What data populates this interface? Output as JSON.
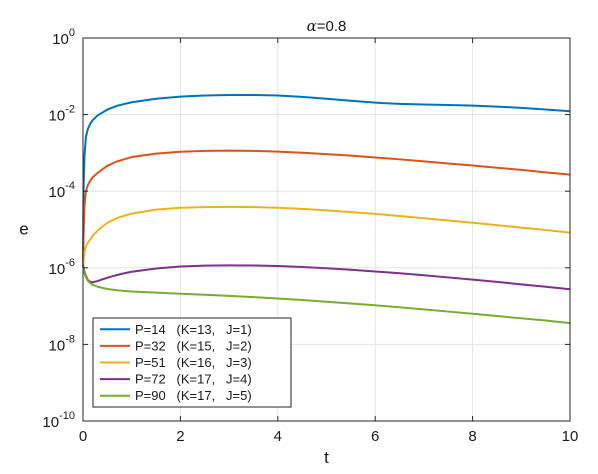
{
  "chart_data": {
    "type": "line",
    "title_prefix": "α",
    "title_suffix": "=0.8",
    "xlabel": "t",
    "ylabel": "e",
    "xlim": [
      0,
      10
    ],
    "ylim": [
      1e-10,
      1
    ],
    "yscale": "log",
    "grid": true,
    "legend_position": "bottom-left",
    "x_ticks": [
      0,
      2,
      4,
      6,
      8,
      10
    ],
    "x_tick_labels": [
      "0",
      "2",
      "4",
      "6",
      "8",
      "10"
    ],
    "y_ticks": [
      -10,
      -8,
      -6,
      -4,
      -2,
      0
    ],
    "y_tick_labels": [
      {
        "base": "10",
        "exp": "-10"
      },
      {
        "base": "10",
        "exp": "-8"
      },
      {
        "base": "10",
        "exp": "-6"
      },
      {
        "base": "10",
        "exp": "-4"
      },
      {
        "base": "10",
        "exp": "-2"
      },
      {
        "base": "10",
        "exp": "0"
      }
    ],
    "series": [
      {
        "name": "P=14   (K=13,   J=1)",
        "color": "#0072BD",
        "x": [
          0.0,
          0.01,
          0.03,
          0.06,
          0.1,
          0.15,
          0.2,
          0.3,
          0.5,
          0.7,
          1.0,
          1.5,
          2.0,
          2.5,
          3.0,
          3.5,
          4.0,
          4.5,
          5.0,
          5.5,
          6.0,
          6.5,
          7.0,
          7.5,
          8.0,
          8.5,
          9.0,
          9.5,
          10.0
        ],
        "y": [
          1e-06,
          0.0001,
          0.00083,
          0.0026,
          0.0042,
          0.0058,
          0.0072,
          0.0095,
          0.0135,
          0.017,
          0.021,
          0.026,
          0.0295,
          0.0315,
          0.0325,
          0.0325,
          0.0315,
          0.029,
          0.026,
          0.023,
          0.0205,
          0.019,
          0.0183,
          0.0178,
          0.0172,
          0.0162,
          0.015,
          0.0136,
          0.0122
        ]
      },
      {
        "name": "P=32   (K=15,   J=2)",
        "color": "#D95319",
        "x": [
          0.0,
          0.01,
          0.03,
          0.06,
          0.1,
          0.15,
          0.2,
          0.3,
          0.5,
          0.7,
          1.0,
          1.5,
          2.0,
          2.5,
          3.0,
          3.5,
          4.0,
          4.5,
          5.0,
          5.5,
          6.0,
          6.5,
          7.0,
          7.5,
          8.0,
          8.5,
          9.0,
          9.5,
          10.0
        ],
        "y": [
          1e-06,
          6e-06,
          4e-05,
          0.0001,
          0.000145,
          0.00019,
          0.00023,
          0.0003,
          0.00046,
          0.0006,
          0.00078,
          0.00096,
          0.00107,
          0.00113,
          0.00115,
          0.00113,
          0.00108,
          0.00101,
          0.00093,
          0.00085,
          0.00076,
          0.00068,
          0.0006,
          0.00053,
          0.00047,
          0.00041,
          0.00036,
          0.00031,
          0.00027
        ]
      },
      {
        "name": "P=51   (K=16,   J=3)",
        "color": "#EDB120",
        "x": [
          0.0,
          0.01,
          0.03,
          0.06,
          0.1,
          0.15,
          0.2,
          0.3,
          0.5,
          0.7,
          1.0,
          1.5,
          2.0,
          2.5,
          3.0,
          3.5,
          4.0,
          4.5,
          5.0,
          5.5,
          6.0,
          6.5,
          7.0,
          7.5,
          8.0,
          8.5,
          9.0,
          9.5,
          10.0
        ],
        "y": [
          1e-06,
          1.6e-06,
          2.6e-06,
          3.6e-06,
          4.5e-06,
          5.6e-06,
          6.9e-06,
          9.4e-06,
          1.5e-05,
          2e-05,
          2.6e-05,
          3.3e-05,
          3.7e-05,
          3.85e-05,
          3.9e-05,
          3.85e-05,
          3.7e-05,
          3.45e-05,
          3.15e-05,
          2.85e-05,
          2.55e-05,
          2.25e-05,
          1.97e-05,
          1.72e-05,
          1.5e-05,
          1.3e-05,
          1.12e-05,
          9.7e-06,
          8.3e-06
        ]
      },
      {
        "name": "P=72   (K=17,   J=4)",
        "color": "#7E2F8E",
        "x": [
          0.0,
          0.02,
          0.05,
          0.1,
          0.15,
          0.2,
          0.3,
          0.4,
          0.6,
          0.8,
          1.0,
          1.5,
          2.0,
          2.5,
          3.0,
          3.5,
          4.0,
          4.5,
          5.0,
          5.5,
          6.0,
          6.5,
          7.0,
          7.5,
          8.0,
          8.5,
          9.0,
          9.5,
          10.0
        ],
        "y": [
          1.2e-06,
          9e-07,
          6.5e-07,
          4.8e-07,
          4.3e-07,
          4.2e-07,
          4.5e-07,
          5e-07,
          6e-07,
          7e-07,
          7.9e-07,
          9.6e-07,
          1.08e-06,
          1.14e-06,
          1.16e-06,
          1.15e-06,
          1.11e-06,
          1.05e-06,
          9.7e-07,
          8.9e-07,
          8e-07,
          7.2e-07,
          6.4e-07,
          5.6e-07,
          4.9e-07,
          4.3e-07,
          3.7e-07,
          3.2e-07,
          2.75e-07
        ]
      },
      {
        "name": "P=90   (K=17,   J=5)",
        "color": "#77AC30",
        "x": [
          0.0,
          0.02,
          0.05,
          0.1,
          0.15,
          0.2,
          0.3,
          0.5,
          0.7,
          1.0,
          1.5,
          2.0,
          2.5,
          3.0,
          3.5,
          4.0,
          4.5,
          5.0,
          5.5,
          6.0,
          6.5,
          7.0,
          7.5,
          8.0,
          8.5,
          9.0,
          9.5,
          10.0
        ],
        "y": [
          1.1e-06,
          8e-07,
          6e-07,
          4.6e-07,
          4e-07,
          3.6e-07,
          3.2e-07,
          2.8e-07,
          2.6e-07,
          2.4e-07,
          2.25e-07,
          2.1e-07,
          1.98e-07,
          1.85e-07,
          1.72e-07,
          1.58e-07,
          1.44e-07,
          1.3e-07,
          1.17e-07,
          1.05e-07,
          9.3e-08,
          8.2e-08,
          7.2e-08,
          6.3e-08,
          5.5e-08,
          4.8e-08,
          4.2e-08,
          3.6e-08
        ]
      }
    ]
  }
}
